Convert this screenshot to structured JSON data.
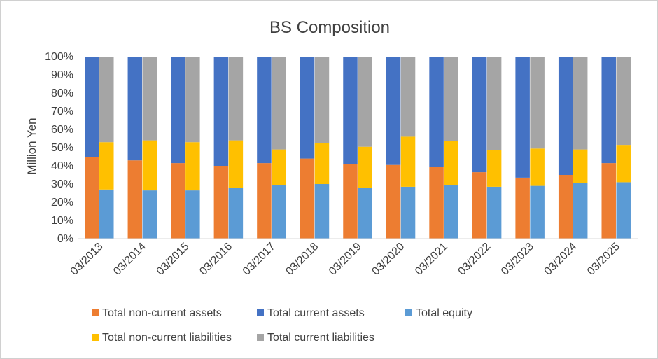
{
  "chart_data": {
    "type": "bar",
    "stacked": true,
    "title": "BS Composition",
    "ylabel": "Million Yen",
    "xlabel": "",
    "ylim": [
      0,
      100
    ],
    "y_ticks": [
      "0%",
      "10%",
      "20%",
      "30%",
      "40%",
      "50%",
      "60%",
      "70%",
      "80%",
      "90%",
      "100%"
    ],
    "grid": false,
    "legend_position": "bottom",
    "categories": [
      "03/2013",
      "03/2014",
      "03/2015",
      "03/2016",
      "03/2017",
      "03/2018",
      "03/2019",
      "03/2020",
      "03/2021",
      "03/2022",
      "03/2023",
      "03/2024",
      "03/2025"
    ],
    "asset_stack": [
      {
        "name": "Total non-current assets",
        "color": "#ED7D31",
        "values": [
          45,
          43,
          41.5,
          40,
          41.5,
          44,
          41,
          40.5,
          39.5,
          36.5,
          33.5,
          35,
          41.5
        ]
      },
      {
        "name": "Total current assets",
        "color": "#4472C4",
        "values": [
          55,
          57,
          58.5,
          60,
          58.5,
          56,
          59,
          59.5,
          60.5,
          63.5,
          66.5,
          65,
          58.5
        ]
      }
    ],
    "liability_equity_stack": [
      {
        "name": "Total equity",
        "color": "#5B9BD5",
        "values": [
          27,
          26.5,
          26.5,
          28,
          29.5,
          30,
          28,
          28.5,
          29.5,
          28.5,
          29,
          30.5,
          31
        ]
      },
      {
        "name": "Total non-current liabilities",
        "color": "#FFC000",
        "values": [
          26,
          27.5,
          26.5,
          26,
          19.5,
          22.5,
          22.5,
          27.5,
          24,
          20,
          20.5,
          18.5,
          20.5
        ]
      },
      {
        "name": "Total current liabilities",
        "color": "#A5A5A5",
        "values": [
          47,
          46,
          47,
          46,
          51,
          47.5,
          49.5,
          44,
          46.5,
          51.5,
          50.5,
          51,
          48.5
        ]
      }
    ],
    "legend": [
      {
        "name": "Total non-current assets",
        "color": "#ED7D31"
      },
      {
        "name": "Total current assets",
        "color": "#4472C4"
      },
      {
        "name": "Total equity",
        "color": "#5B9BD5"
      },
      {
        "name": "Total non-current liabilities",
        "color": "#FFC000"
      },
      {
        "name": "Total current liabilities",
        "color": "#A5A5A5"
      }
    ]
  }
}
